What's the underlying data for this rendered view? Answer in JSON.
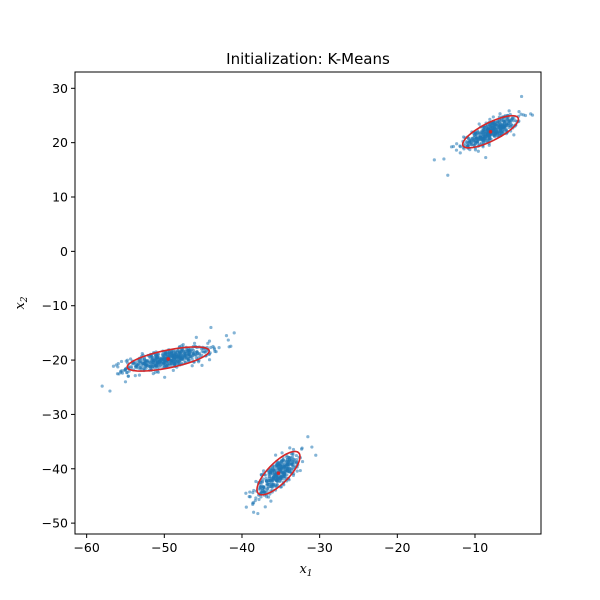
{
  "chart_data": {
    "type": "scatter",
    "title": "Initialization: K-Means",
    "xlabel": "x",
    "xlabel_sub": "1",
    "ylabel": "x",
    "ylabel_sub": "2",
    "xlim": [
      -61.5,
      -1.5
    ],
    "ylim": [
      -52,
      33
    ],
    "xticks": [
      -60,
      -50,
      -40,
      -30,
      -20,
      -10
    ],
    "yticks": [
      -50,
      -40,
      -30,
      -20,
      -10,
      0,
      10,
      20,
      30
    ],
    "grid": false,
    "point_color": "#1f77b4",
    "ellipse_color": "#d62728",
    "center_color": "#d62728",
    "clusters": [
      {
        "center": [
          -8,
          22
        ],
        "n": 420,
        "spread_major": 2.2,
        "spread_minor": 0.8,
        "angle_deg": 38,
        "outliers": [
          [
            -13.5,
            14
          ],
          [
            -14,
            17
          ],
          [
            -4,
            28.5
          ],
          [
            -3.5,
            25
          ]
        ],
        "ellipse": {
          "semi_major": 4.4,
          "semi_minor": 1.5,
          "angle_deg": 38
        }
      },
      {
        "center": [
          -49.5,
          -19.8
        ],
        "n": 520,
        "spread_major": 2.8,
        "spread_minor": 0.8,
        "angle_deg": 17,
        "outliers": [
          [
            -58,
            -24.8
          ],
          [
            -57,
            -25.7
          ],
          [
            -41,
            -15
          ],
          [
            -42,
            -15.5
          ],
          [
            -44,
            -14
          ],
          [
            -55,
            -24
          ]
        ],
        "ellipse": {
          "semi_major": 5.5,
          "semi_minor": 1.6,
          "angle_deg": 17
        }
      },
      {
        "center": [
          -35.3,
          -40.8
        ],
        "n": 360,
        "spread_major": 2.4,
        "spread_minor": 0.8,
        "angle_deg": 58,
        "outliers": [
          [
            -38.5,
            -48
          ],
          [
            -39.5,
            -44.5
          ],
          [
            -31,
            -36
          ],
          [
            -30.5,
            -37.5
          ],
          [
            -37,
            -47
          ]
        ],
        "ellipse": {
          "semi_major": 4.6,
          "semi_minor": 1.55,
          "angle_deg": 58
        }
      }
    ]
  }
}
